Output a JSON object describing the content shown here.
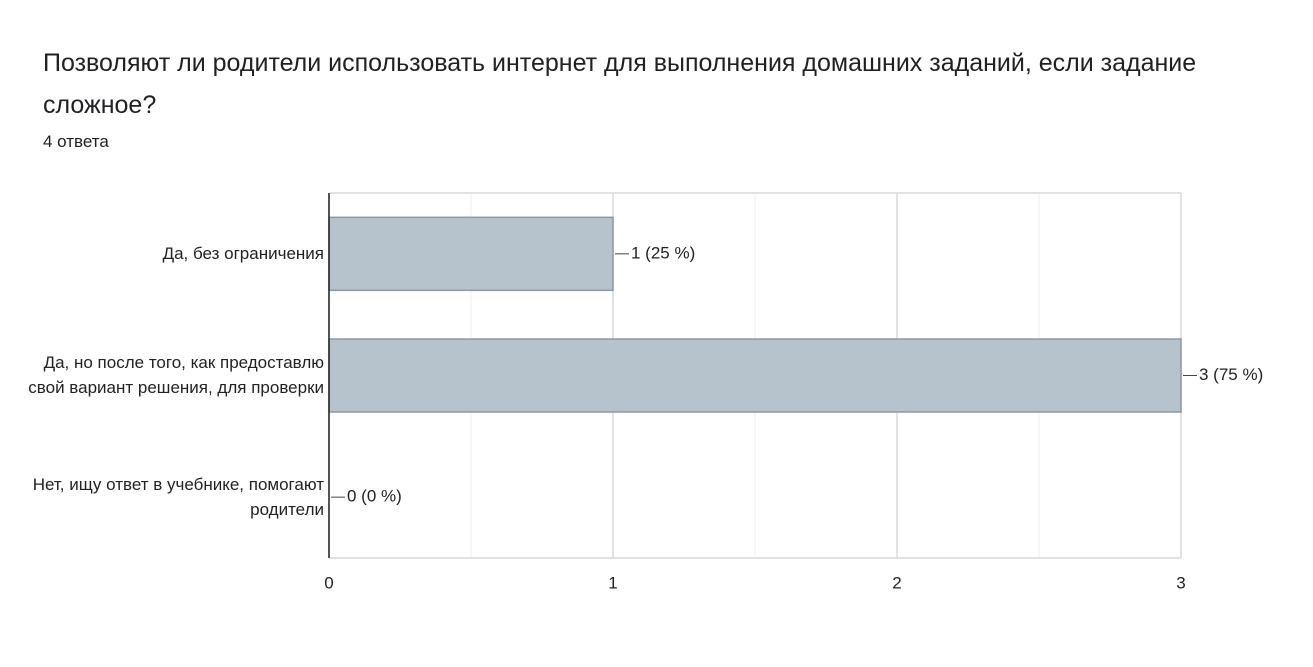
{
  "chart_data": {
    "type": "hbar",
    "title": "Позволяют ли родители использовать интернет для выполнения домашних заданий, если задание сложное?",
    "subtitle": "4 ответа",
    "categories": [
      "Да, без ограничения",
      "Да, но после того, как предоставлю свой вариант решения, для проверки",
      "Нет, ищу ответ в учебнике, помогают родители"
    ],
    "values": [
      1,
      3,
      0
    ],
    "value_labels": [
      "1 (25 %)",
      "3 (75 %)",
      "0 (0 %)"
    ],
    "color": "#b7c3cc",
    "xlim": [
      0,
      3
    ],
    "xticks": [
      0,
      1,
      2,
      3
    ],
    "minor_xticks": [
      0.5,
      1.5,
      2.5
    ],
    "grid": true
  }
}
